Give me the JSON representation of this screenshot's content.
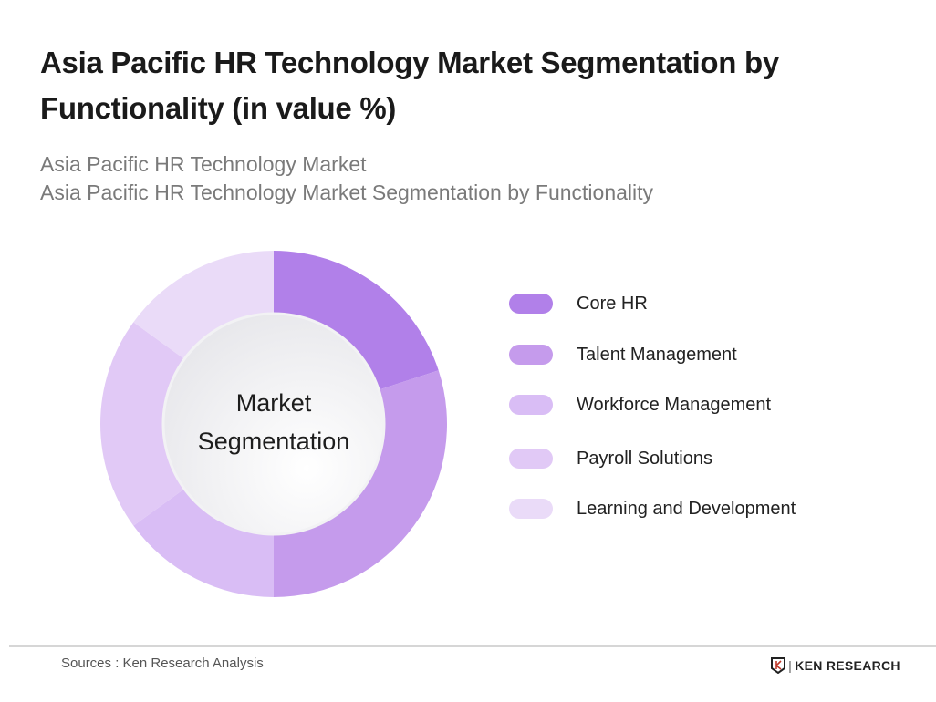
{
  "title": "Asia Pacific HR Technology Market Segmentation by Functionality (in value %)",
  "subtitle1": "Asia Pacific HR Technology Market",
  "subtitle2": "Asia Pacific HR Technology Market Segmentation by Functionality",
  "center_label": {
    "line1": "Market",
    "line2": "Segmentation"
  },
  "chart_data": {
    "type": "pie",
    "title": "Asia Pacific HR Technology Market Segmentation by Functionality (in value %)",
    "categories": [
      "Core HR",
      "Talent Management",
      "Workforce Management",
      "Payroll Solutions",
      "Learning and Development"
    ],
    "values": [
      20,
      30,
      15,
      20,
      15
    ],
    "colors": [
      "#b180e9",
      "#c59bec",
      "#d9bdf5",
      "#e1c9f6",
      "#eadbf8"
    ],
    "legend_position": "right",
    "donut": true
  },
  "footer": {
    "source": "Sources : Ken Research Analysis",
    "logo": "KEN RESEARCH"
  }
}
